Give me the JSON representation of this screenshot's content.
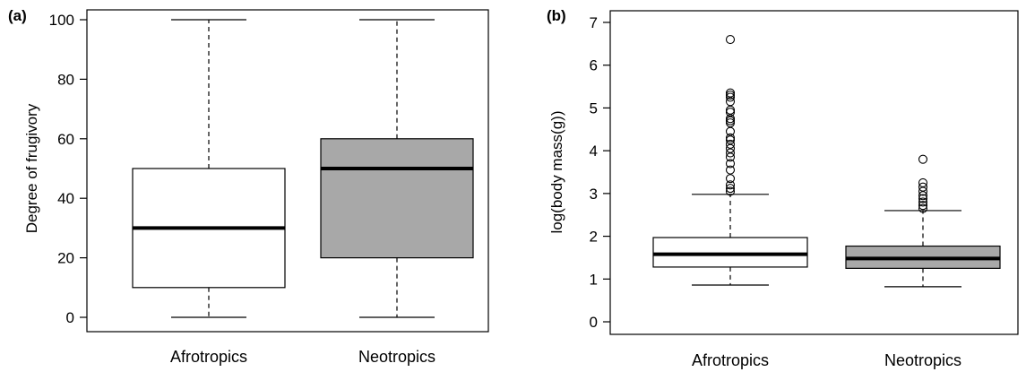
{
  "chart_data": [
    {
      "type": "box",
      "panel_label": "(a)",
      "ylabel": "Degree of frugivory",
      "xlabel": "",
      "ylim": [
        0,
        100
      ],
      "yticks": [
        "0",
        "20",
        "40",
        "60",
        "80",
        "100"
      ],
      "categories": [
        "Afrotropics",
        "Neotropics"
      ],
      "boxes": [
        {
          "name": "Afrotropics",
          "whisker_low": 0,
          "q1": 10,
          "median": 30,
          "q3": 50,
          "whisker_high": 100,
          "fill": "#ffffff",
          "outliers": []
        },
        {
          "name": "Neotropics",
          "whisker_low": 0,
          "q1": 20,
          "median": 50,
          "q3": 60,
          "whisker_high": 100,
          "fill": "#a8a8a8",
          "outliers": []
        }
      ]
    },
    {
      "type": "box",
      "panel_label": "(b)",
      "ylabel": "log(body mass(g))",
      "xlabel": "",
      "ylim": [
        0,
        7
      ],
      "yticks": [
        "0",
        "1",
        "2",
        "3",
        "4",
        "5",
        "6",
        "7"
      ],
      "categories": [
        "Afrotropics",
        "Neotropics"
      ],
      "boxes": [
        {
          "name": "Afrotropics",
          "whisker_low": 0.86,
          "q1": 1.28,
          "median": 1.58,
          "q3": 1.97,
          "whisker_high": 2.98,
          "fill": "#ffffff",
          "outliers": [
            3.05,
            3.12,
            3.2,
            3.35,
            3.55,
            3.7,
            3.85,
            3.95,
            4.05,
            4.15,
            4.25,
            4.3,
            4.45,
            4.65,
            4.7,
            4.75,
            4.9,
            4.95,
            5.15,
            5.25,
            5.3,
            5.35,
            6.6
          ]
        },
        {
          "name": "Neotropics",
          "whisker_low": 0.82,
          "q1": 1.25,
          "median": 1.48,
          "q3": 1.77,
          "whisker_high": 2.6,
          "fill": "#a8a8a8",
          "outliers": [
            2.65,
            2.72,
            2.8,
            2.88,
            2.95,
            3.05,
            3.15,
            3.25,
            3.8
          ]
        }
      ]
    }
  ]
}
